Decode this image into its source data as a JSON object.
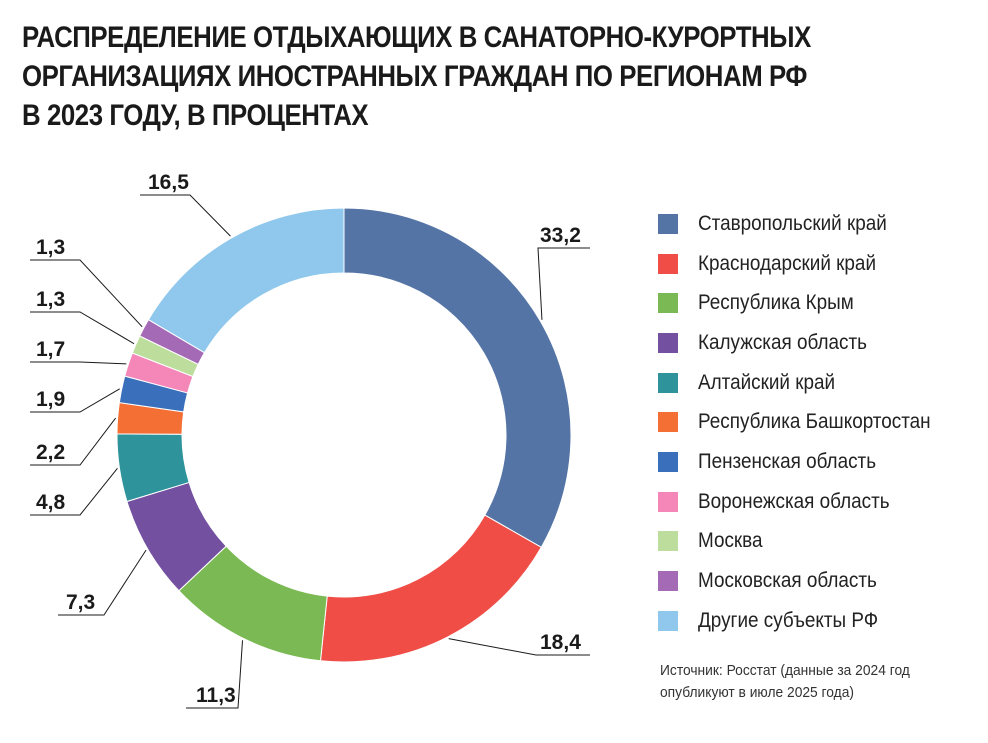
{
  "title_lines": [
    "РАСПРЕДЕЛЕНИЕ ОТДЫХАЮЩИХ В САНАТОРНО-КУРОРТНЫХ",
    "ОРГАНИЗАЦИЯХ ИНОСТРАННЫХ ГРАЖДАН ПО РЕГИОНАМ РФ",
    "В 2023 ГОДУ, В ПРОЦЕНТАХ"
  ],
  "source_line1": "Источник: Росстат (данные за 2024 год",
  "source_line2": "опубликуют в июле 2025 года)",
  "chart_data": {
    "type": "pie",
    "donut": true,
    "title": "РАСПРЕДЕЛЕНИЕ ОТДЫХАЮЩИХ В САНАТОРНО-КУРОРТНЫХ ОРГАНИЗАЦИЯХ ИНОСТРАННЫХ ГРАЖДАН ПО РЕГИОНАМ РФ В 2023 ГОДУ, В ПРОЦЕНТАХ",
    "legend_position": "right",
    "categories": [
      "Ставропольский край",
      "Краснодарский край",
      "Республика Крым",
      "Калужская область",
      "Алтайский край",
      "Республика Башкортостан",
      "Пензенская область",
      "Воронежская область",
      "Москва",
      "Московская область",
      "Другие субъекты РФ"
    ],
    "values": [
      33.2,
      18.4,
      11.3,
      7.3,
      4.8,
      2.2,
      1.9,
      1.7,
      1.3,
      1.3,
      16.5
    ],
    "labels": [
      "33,2",
      "18,4",
      "11,3",
      "7,3",
      "4,8",
      "2,2",
      "1,9",
      "1,7",
      "1,3",
      "1,3",
      "16,5"
    ],
    "colors": [
      "#5574a6",
      "#ef4d45",
      "#7ab953",
      "#7350a0",
      "#2f939c",
      "#f36f34",
      "#3a6fbb",
      "#f486b8",
      "#bddd9c",
      "#a46ab5",
      "#8fc8ec"
    ]
  }
}
